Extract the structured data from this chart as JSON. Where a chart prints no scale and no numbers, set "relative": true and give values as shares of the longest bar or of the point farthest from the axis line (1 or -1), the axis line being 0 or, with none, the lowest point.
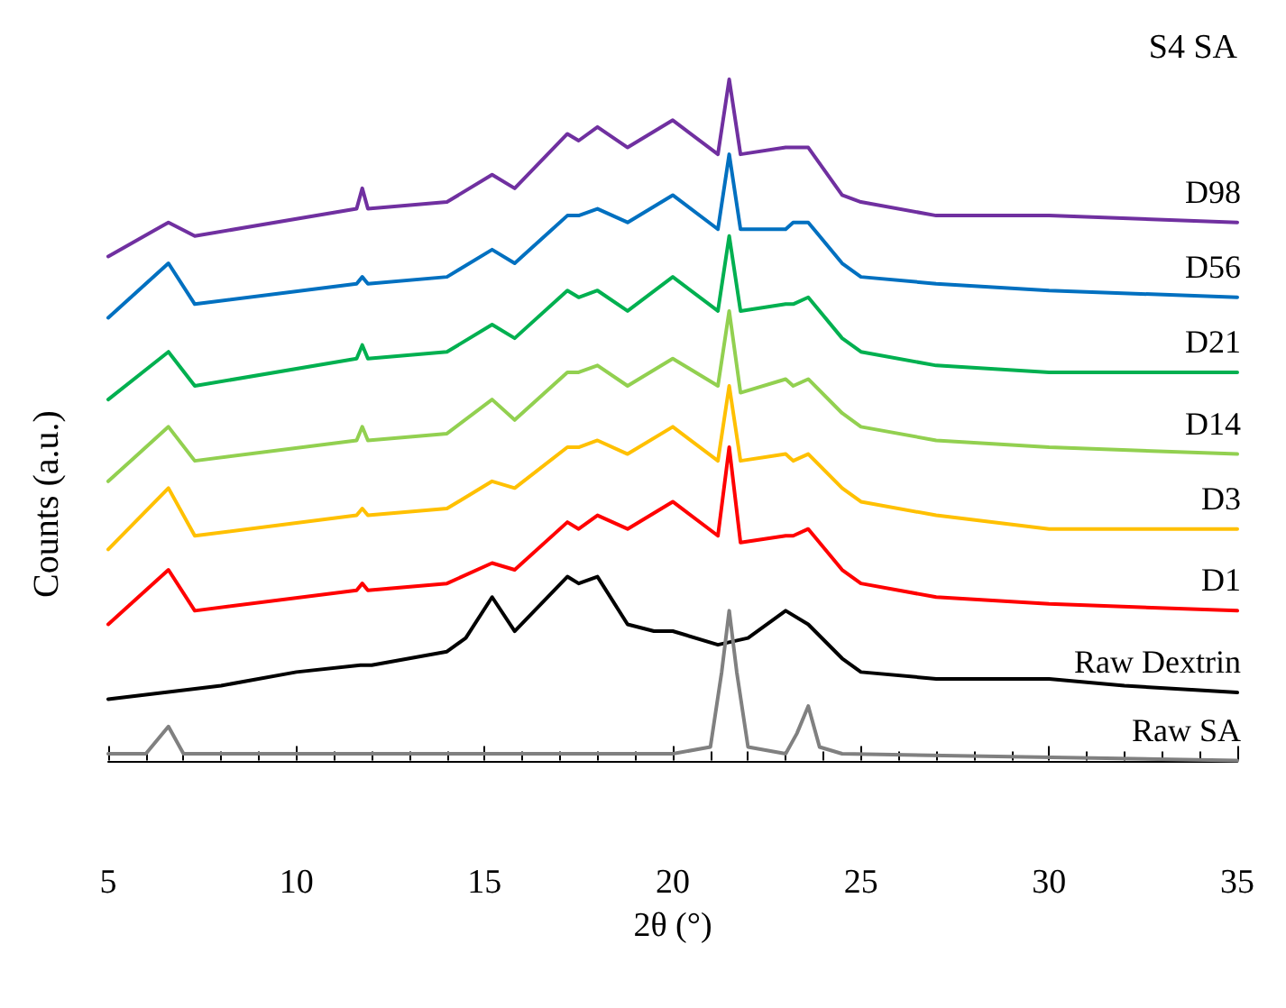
{
  "chart_data": {
    "type": "line",
    "title": "S4 SA",
    "xlabel": "2θ (°)",
    "ylabel": "Counts (a.u.)",
    "relative": true,
    "xlim": [
      5,
      35
    ],
    "xticks": [
      5,
      10,
      15,
      20,
      25,
      30,
      35
    ],
    "grid": false,
    "legend": false,
    "marker": "none",
    "line_style": "solid",
    "series": [
      {
        "name": "D98",
        "color": "#7030a0",
        "x": [
          5,
          6.6,
          7.3,
          11.6,
          11.75,
          11.9,
          14,
          15.2,
          15.8,
          17.2,
          17.5,
          18,
          18.8,
          20,
          21.2,
          21.5,
          21.8,
          23,
          23.2,
          23.6,
          24.5,
          25,
          27,
          30,
          35
        ],
        "values": [
          0.74,
          0.79,
          0.77,
          0.81,
          0.84,
          0.81,
          0.82,
          0.86,
          0.84,
          0.92,
          0.91,
          0.93,
          0.9,
          0.94,
          0.89,
          1,
          0.89,
          0.9,
          0.9,
          0.9,
          0.83,
          0.82,
          0.8,
          0.8,
          0.79
        ]
      },
      {
        "name": "D56",
        "color": "#0070c0",
        "x": [
          5,
          6.6,
          7.3,
          11.6,
          11.75,
          11.9,
          14,
          15.2,
          15.8,
          17.2,
          17.5,
          18,
          18.8,
          20,
          21.2,
          21.5,
          21.8,
          23,
          23.2,
          23.6,
          24.5,
          25,
          27,
          30,
          35
        ],
        "values": [
          0.65,
          0.73,
          0.67,
          0.7,
          0.71,
          0.7,
          0.71,
          0.75,
          0.73,
          0.8,
          0.8,
          0.81,
          0.79,
          0.83,
          0.78,
          0.89,
          0.78,
          0.78,
          0.79,
          0.79,
          0.73,
          0.71,
          0.7,
          0.69,
          0.68
        ]
      },
      {
        "name": "D21",
        "color": "#00b050",
        "x": [
          5,
          6.6,
          7.3,
          11.6,
          11.75,
          11.9,
          14,
          15.2,
          15.8,
          17.2,
          17.5,
          18,
          18.8,
          20,
          21.2,
          21.5,
          21.8,
          23,
          23.2,
          23.6,
          24.5,
          25,
          27,
          30,
          35
        ],
        "values": [
          0.53,
          0.6,
          0.55,
          0.59,
          0.61,
          0.59,
          0.6,
          0.64,
          0.62,
          0.69,
          0.68,
          0.69,
          0.66,
          0.71,
          0.66,
          0.77,
          0.66,
          0.67,
          0.67,
          0.68,
          0.62,
          0.6,
          0.58,
          0.57,
          0.57
        ]
      },
      {
        "name": "D14",
        "color": "#92d050",
        "x": [
          5,
          6.6,
          7.3,
          11.6,
          11.75,
          11.9,
          14,
          15.2,
          15.8,
          17.2,
          17.5,
          18,
          18.8,
          20,
          21.2,
          21.5,
          21.8,
          23,
          23.2,
          23.6,
          24.5,
          25,
          27,
          30,
          35
        ],
        "values": [
          0.41,
          0.49,
          0.44,
          0.47,
          0.49,
          0.47,
          0.48,
          0.53,
          0.5,
          0.57,
          0.57,
          0.58,
          0.55,
          0.59,
          0.55,
          0.66,
          0.54,
          0.56,
          0.55,
          0.56,
          0.51,
          0.49,
          0.47,
          0.46,
          0.45
        ]
      },
      {
        "name": "D3",
        "color": "#ffc000",
        "x": [
          5,
          6.6,
          7.3,
          11.6,
          11.75,
          11.9,
          14,
          15.2,
          15.8,
          17.2,
          17.5,
          18,
          18.8,
          20,
          21.2,
          21.5,
          21.8,
          23,
          23.2,
          23.6,
          24.5,
          25,
          27,
          30,
          35
        ],
        "values": [
          0.31,
          0.4,
          0.33,
          0.36,
          0.37,
          0.36,
          0.37,
          0.41,
          0.4,
          0.46,
          0.46,
          0.47,
          0.45,
          0.49,
          0.44,
          0.55,
          0.44,
          0.45,
          0.44,
          0.45,
          0.4,
          0.38,
          0.36,
          0.34,
          0.34
        ]
      },
      {
        "name": "D1",
        "color": "#ff0000",
        "x": [
          5,
          6.6,
          7.3,
          11.6,
          11.75,
          11.9,
          14,
          15.2,
          15.8,
          17.2,
          17.5,
          18,
          18.8,
          20,
          21.2,
          21.5,
          21.8,
          23,
          23.2,
          23.6,
          24.5,
          25,
          27,
          30,
          35
        ],
        "values": [
          0.2,
          0.28,
          0.22,
          0.25,
          0.26,
          0.25,
          0.26,
          0.29,
          0.28,
          0.35,
          0.34,
          0.36,
          0.34,
          0.38,
          0.33,
          0.46,
          0.32,
          0.33,
          0.33,
          0.34,
          0.28,
          0.26,
          0.24,
          0.23,
          0.22
        ]
      },
      {
        "name": "Raw Dextrin",
        "color": "#000000",
        "x": [
          5,
          8,
          10,
          11.7,
          12,
          14,
          14.5,
          15.2,
          15.8,
          17.2,
          17.5,
          18,
          18.8,
          19.5,
          20,
          21.2,
          22,
          23,
          23.6,
          24.5,
          25,
          27,
          30,
          32,
          35
        ],
        "values": [
          0.09,
          0.11,
          0.13,
          0.14,
          0.14,
          0.16,
          0.18,
          0.24,
          0.19,
          0.27,
          0.26,
          0.27,
          0.2,
          0.19,
          0.19,
          0.17,
          0.18,
          0.22,
          0.2,
          0.15,
          0.13,
          0.12,
          0.12,
          0.11,
          0.1
        ]
      },
      {
        "name": "Raw SA",
        "color": "#808080",
        "x": [
          5,
          6,
          6.6,
          7,
          10,
          20,
          21,
          21.3,
          21.5,
          21.7,
          22,
          23,
          23.3,
          23.6,
          23.9,
          24.5,
          35
        ],
        "values": [
          0.01,
          0.01,
          0.05,
          0.01,
          0.01,
          0.01,
          0.02,
          0.13,
          0.22,
          0.13,
          0.02,
          0.01,
          0.04,
          0.08,
          0.02,
          0.01,
          0
        ]
      }
    ]
  }
}
